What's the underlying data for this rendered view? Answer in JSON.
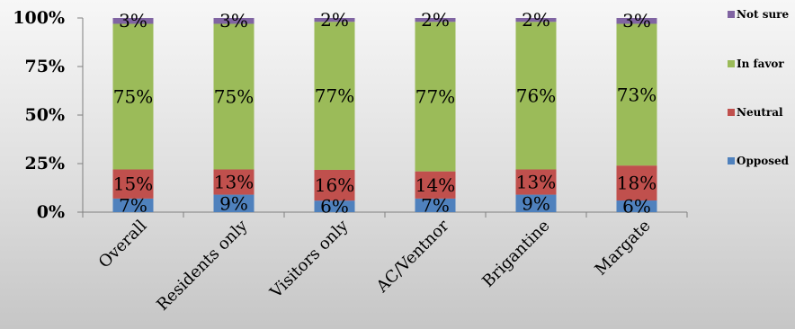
{
  "chart_data": {
    "type": "bar",
    "stacked": true,
    "percent": true,
    "categories": [
      "Overall",
      "Residents only",
      "Visitors only",
      "AC/Ventnor",
      "Brigantine",
      "Margate"
    ],
    "series": [
      {
        "name": "Opposed",
        "color": "#4f81bd",
        "values": [
          7,
          9,
          6,
          7,
          9,
          6
        ]
      },
      {
        "name": "Neutral",
        "color": "#c0504d",
        "values": [
          15,
          13,
          16,
          14,
          13,
          18
        ]
      },
      {
        "name": "In favor",
        "color": "#9bbb59",
        "values": [
          75,
          75,
          77,
          77,
          76,
          73
        ]
      },
      {
        "name": "Not sure",
        "color": "#8064a2",
        "values": [
          3,
          3,
          2,
          2,
          2,
          3
        ]
      }
    ],
    "data_labels": [
      [
        "7%",
        "9%",
        "6%",
        "7%",
        "9%",
        "6%"
      ],
      [
        "15%",
        "13%",
        "16%",
        "14%",
        "13%",
        "18%"
      ],
      [
        "75%",
        "75%",
        "77%",
        "77%",
        "76%",
        "73%"
      ],
      [
        "3%",
        "3%",
        "2%",
        "2%",
        "2%",
        "3%"
      ]
    ],
    "yticks": [
      "0%",
      "25%",
      "50%",
      "75%",
      "100%"
    ],
    "ylim": [
      0,
      100
    ],
    "legend_position": "right",
    "legend_order": [
      "Not sure",
      "In favor",
      "Neutral",
      "Opposed"
    ],
    "grid": false
  }
}
